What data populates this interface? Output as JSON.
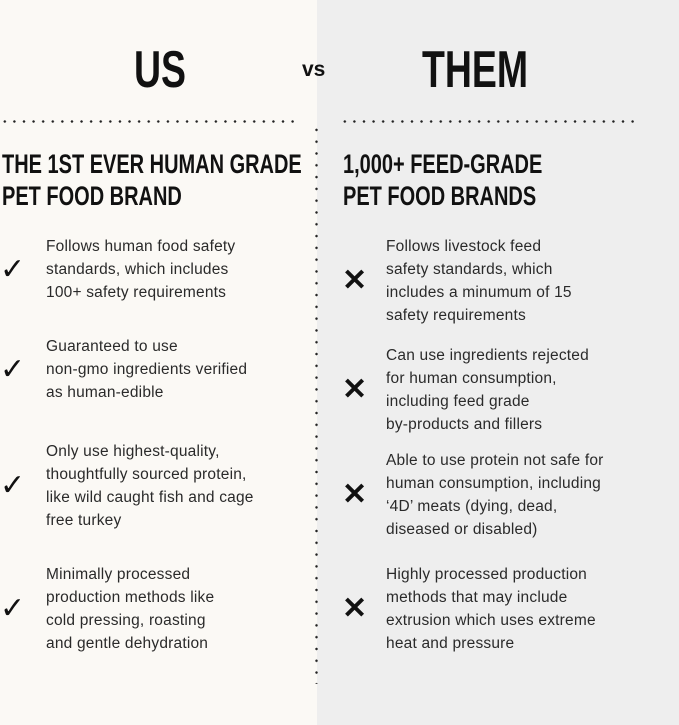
{
  "us": {
    "title": "US",
    "heading": [
      "THE 1ST EVER HUMAN GRADE",
      "PET FOOD BRAND"
    ],
    "icon": "checkmark-icon",
    "items": [
      [
        "Follows human food safety",
        "standards, which includes",
        "100+ safety requirements"
      ],
      [
        "Guaranteed to use",
        "non-gmo ingredients verified",
        "as human-edible"
      ],
      [
        "Only use highest-quality,",
        "thoughtfully sourced protein,",
        "like wild caught fish and cage",
        "free turkey"
      ],
      [
        "Minimally processed",
        "production methods like",
        "cold pressing, roasting",
        "and gentle dehydration"
      ]
    ]
  },
  "vs_label": "vs",
  "them": {
    "title": "THEM",
    "heading": [
      "1,000+ FEED-GRADE",
      "PET FOOD BRANDS"
    ],
    "icon": "x-mark-icon",
    "items": [
      [
        "Follows livestock feed",
        "safety standards, which",
        "includes a minumum of 15",
        "safety requirements"
      ],
      [
        "Can use ingredients rejected",
        "for human consumption,",
        "including feed grade",
        "by-products and fillers"
      ],
      [
        "Able to use protein not safe for",
        "human consumption, including",
        "‘4D’ meats (dying, dead,",
        "diseased or disabled)"
      ],
      [
        "Highly processed production",
        "methods that may include",
        "extrusion which uses extreme",
        "heat and pressure"
      ]
    ]
  },
  "colors": {
    "left_bg": "#fbf9f5",
    "right_bg": "#eeeeee",
    "text": "#1a1a1a"
  }
}
